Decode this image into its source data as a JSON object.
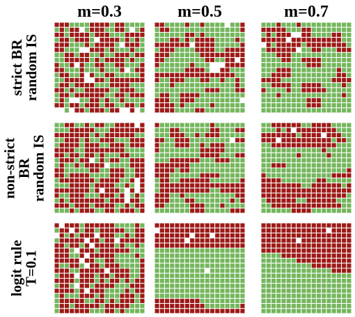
{
  "columns": [
    "m=0.3",
    "m=0.5",
    "m=0.7"
  ],
  "rows": [
    {
      "lines": [
        "strict BR",
        "random IS"
      ]
    },
    {
      "lines": [
        "non-strict",
        "BR",
        "random IS"
      ]
    },
    {
      "lines": [
        "logit rule",
        "T=0.1"
      ]
    }
  ],
  "colors": {
    "red": "#9c1a17",
    "green": "#74b65c",
    "white": "#ffffff",
    "gridline": "#ffffff"
  },
  "panels": [
    {
      "row": 0,
      "col": 0,
      "grid": [
        "RRRGGGGRRRRGRRGGGG",
        "GRGRRWGRRRGGRRGWGR",
        "RRGRRRRGRRRGGGRRRR",
        "GRRGRRRGWRRRRGRGRG",
        "RRRGGGRGRRRRGWRRRG",
        "RRGGGWWRRRGRGGGRGG",
        "GGRRGRRGGRGGRRRGRR",
        "GGRRRRRGRGRRRRGRGG",
        "RGGRWRGGRRGGRRGGGR",
        "RRGGGRGGGRGGGRWGRR",
        "GRRGGRWRGGRRGGGGGR",
        "GGRRRRWWRRGRRRRRRR",
        "GRRGRRRRGGGRRRRGGG",
        "RRGRGGRRRRRGGRRRGG",
        "GRRGRRRRRRGGRRGRRR",
        "GRGWWGGRRGRGGRGGGG",
        "RRGRRGRRRGRRGGRRGR",
        "WWGWRRGRRRGRRWWRWG"
      ]
    },
    {
      "row": 0,
      "col": 1,
      "grid": [
        "RRGGGGRGGRGGGGWGGR",
        "GRRGGGGGGGGGGGGGGR",
        "GGGGGGRRGRGGGGGGGG",
        "GGGRRGRGRRRRGGGGRG",
        "RRRRRRRWRRRRGGGGGR",
        "GRRRGGGGRRRRGGRRRR",
        "RRRGGGGGGRRRRRRRRR",
        "RRGGGGGGGGRRGGRRWR",
        "RGGGGGGRGGGWWWRRRR",
        "GGGGGGRRRRGWWRRGGG",
        "RRRRRRRRRRRRRRRRGG",
        "RGGRRRGGGRRGGRGGRG",
        "GGGRGGGGGGGGGGGGRG",
        "GGGGGGGGGGRRRGGGRR",
        "GRRGGRRRRGGGGGGGGG",
        "RRRGGRRRGGGGGGGGGW",
        "RRRRGRGGGGGRGGGGGG",
        "RRRRGGGGRRGGGGGGGG"
      ]
    },
    {
      "row": 0,
      "col": 2,
      "grid": [
        "GGGRGGGRGGGGGGGGGG",
        "RRRRRGGGRRGGGGGGGG",
        "GRGRRRWWRRGGGGRRGG",
        "RRRRRWRRRRRRRRRRGG",
        "WRGRRRRRGRRRRRRRRG",
        "GRRRRRRWGGRRGGGRRR",
        "GGGRRRGGGGGGGGGGGG",
        "GGGGRRGGRRRRGGGGGG",
        "GGGGGGGGGRRRGGGGGG",
        "GGGRRRGGGGGGGGGRGG",
        "GGRRRRGGGGGGGGGRRG",
        "RRRRGGGGGGGGGGRRRR",
        "GGRRRRGGRRRRGGGGRG",
        "RGGGGRGGRRRRRGGGGG",
        "GGGRGGGGGGGGGGGGRG",
        "GGGGGGGGGRRRGGGGGG",
        "GGGGGGGGGRRRGGGGGG",
        "GGGGGGGGGGGGGGGGGG"
      ]
    },
    {
      "row": 1,
      "col": 0,
      "grid": [
        "GGRRGGRGRRGGRRRRWR",
        "GGGRRRRRGGGRRRRRRR",
        "RRRRRRRGRGRRRRRRGG",
        "GGRRRGRGGRRRGGGRRR",
        "GRRRRGRRRGGRRRGRRR",
        "RRRRGGRRRRRRRRGGGG",
        "RRGRRGRRGRGGGRRGGG",
        "GRRRGRRWGRGRRGGRRR",
        "GRGGRGRRRRWGGGGRRR",
        "RRGGGGGRRGGRRRGGRR",
        "RRGRRRRGGGGRRRGGRR",
        "GRRRRRRRGRRRRGGRWR",
        "GGGRRRRGRRRRGGRGWR",
        "RRRRRRRGRWRRRGWRWR",
        "RGGRRRGGGRRRGRWGRG",
        "GRGRRRRRRRGRRRWRRG",
        "RRRGRRRGRRRRGGRGRR",
        "GGGRGRRRGGRRGRRRGR"
      ]
    },
    {
      "row": 1,
      "col": 1,
      "grid": [
        "RGGGGGGGGGGRGGGGGG",
        "GGGRRGGGGGGRRGGGRR",
        "GGGRRRGGRGRRRGGGGG",
        "RRGGRRRGGGGGGGGWRR",
        "RGGGRRRGGRGRRRGGGG",
        "RGGGGGGGGRRRRRGGGG",
        "GGGGGGGGGRRRRGGGRR",
        "GGGRRRRRRGGGRRRGGG",
        "RRRRRRRGGGGGGGGGGG",
        "RRRRGRRGGGGGGGGGGG",
        "RRRGGGGGGRRRRGGGGG",
        "GRRGGRRRRRRGGGGGGR",
        "GRRRRRRRRRRRRRRRRR",
        "GRRRRRRRRRRGGRRRRR",
        "RRRGGRGGGGGGGGGGRR",
        "RRRGGGRRGGGGGGGRGR",
        "RRGGGGGRRRGGGRGGGG",
        "GGGGGGGRRRGGGGGRRR"
      ]
    },
    {
      "row": 1,
      "col": 2,
      "grid": [
        "GGRRRRRRGGRRRRGGGG",
        "GGGRGRWRRRRRRRRGGG",
        "RRRRRRRGRRRRWRRRGG",
        "RRRWRRRRRRRRRRGRRG",
        "GGRRRRRRRRRRRRRGGG",
        "GGGGGGGGGGGGRGGGGG",
        "GGGGGGGRGGGGGRGGGG",
        "GGGGGGGGGGGGGGGGGG",
        "GGRRRGGGGGGGGGGGGG",
        "GGGGGGGGGGGGGGGGGR",
        "RGGGGGGGGGGGGGRRRR",
        "RRRRGGGGGGGRRGGGGG",
        "RRRRRRRRGGRRRRRRGR",
        "RRRRRRRRRRRRRRRRRR",
        "RRRRRRRRRRRRRRRRRG",
        "GRRRRRRGGRRRRRRGGG",
        "GGRRRRRRRRRRRRRRGG",
        "GGGGGGRRRRGGGGGGGG"
      ]
    },
    {
      "row": 2,
      "col": 0,
      "grid": [
        "RWRRRGRRRRRRGGGGRG",
        "GRRWRGRRGRRRRRGGRR",
        "WRGRGRRRWRRRGGRGRR",
        "GRRRRRWRRGRRWRRRRR",
        "RRGRRGRWRRRRGRGGRG",
        "RRRGWRRRGRRRRRRGGG",
        "RRRGGRWRRRRRGGGGRG",
        "RRRRRWRRGGRRGGGGGR",
        "RGGRRGWRRGRRRGGGGR",
        "RRRGGRRRRRWRRRRGGR",
        "GRRRWRRRGRRGRRRGGR",
        "RRRRGRRRGRGRRGRGRR",
        "GRRGWRRGRRRRGGGRRR",
        "RRRRGRWRRRGGGGRGRR",
        "GRGGGRRRGRGGGRRRGR",
        "GRRRRRGGRRGRGRRRGR",
        "GRRGRRRRRGRRRRRGGG",
        "GRRRRRRGGGRRGRGGGG"
      ]
    },
    {
      "row": 2,
      "col": 1,
      "grid": [
        "RRRRRRRRRRRRRRRRRR",
        "WRRRRRRRRRRRRRRRRR",
        "RRRRRRRWRRRWRRRRRR",
        "RRRRRRWRRRRRRRRRRR",
        "RRRRRRRRRRRRRRRRRR",
        "GGGGGGGGGGGGGGGGGG",
        "GGGGGGGGGGGGGGGGGG",
        "GGGGGGGGGGGGGGGGGG",
        "GGGGGGGGGGGGGGGGGG",
        "GGGGGGGGGGWGGGGGGG",
        "GGGGGGGGGGGGGGGGGG",
        "GGGGGGGGGGGGGGGGGG",
        "GGGGGGGGGGGGGGGGGG",
        "GGGGGGGGGGGGGGGGGG",
        "GGGGGGGGGGGGGGGGGG",
        "RRRRRRRRRGGGGGGGGG",
        "RRRRRRRRRRGGGGGGGR",
        "RRRRRRRRRRRRRRRRRR"
      ]
    },
    {
      "row": 2,
      "col": 2,
      "grid": [
        "RRRRRRRRRRRRRRRRRR",
        "RRRRRRRRRRRRRWRRRR",
        "RRRRRRRRRRRRRRRRRR",
        "RRRRRRRWRRRRRRRRRR",
        "RRRRRRRRRRRRRRRRRR",
        "RRRRRRRRRRRRRRRRRR",
        "GGGGRRRRRRRRRRRRRR",
        "GGGGGGGRRRRRRRRRRR",
        "GGGGGGGGGGRRRRRRRR",
        "GGGGGGGGGGGGGGRRRR",
        "GGGGGGGGGGGGGGGGGG",
        "GGGGGGGGGGGGGGGGGG",
        "GGGGGGGGGGGGGGGGGG",
        "GGGGGGGGGGGGGGGGGG",
        "GGGGGGGGGGGGGGGGGG",
        "GGGGGGGGGGGGGGGGGG",
        "GGGGGGGGGGGGGGGGGG",
        "GGGGGGGGGGGGGGGGGG"
      ]
    }
  ]
}
